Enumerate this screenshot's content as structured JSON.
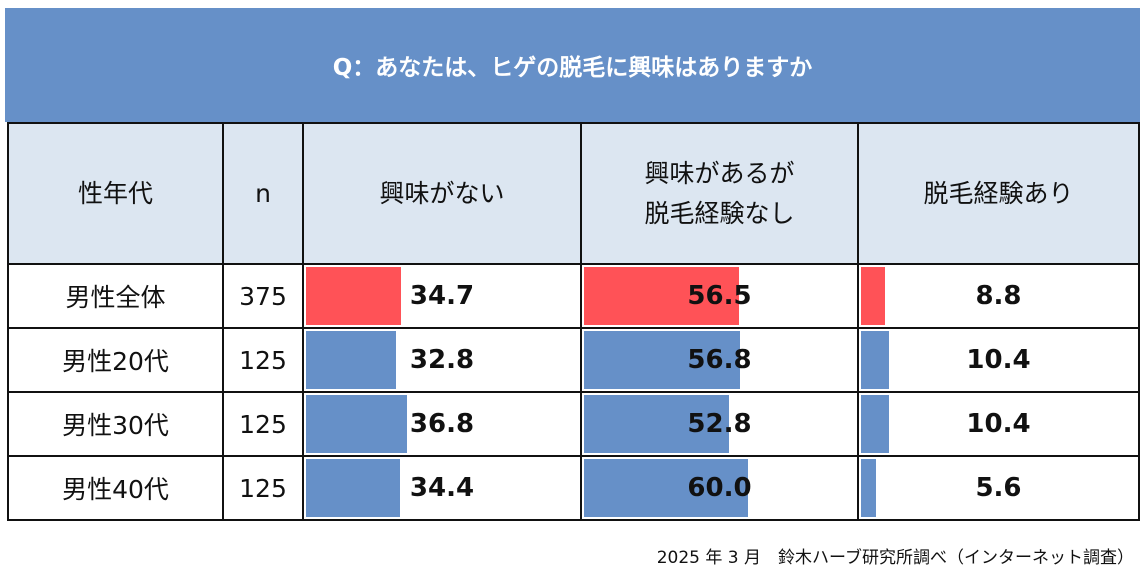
{
  "title": "Q：あなたは、ヒゲの脱毛に興味はありますか",
  "colors": {
    "band": "#6690c8",
    "header_cell": "#dce6f1",
    "highlight_bar": "#ff5257",
    "bar": "#6690c8"
  },
  "chart_data": {
    "type": "table",
    "columns": [
      "性年代",
      "n",
      "興味がない",
      "興味があるが\n脱毛経験なし",
      "脱毛経験あり"
    ],
    "rows": [
      {
        "label": "男性全体",
        "n": "375",
        "values": [
          "34.7",
          "56.5",
          "8.8"
        ],
        "highlight": true
      },
      {
        "label": "男性20代",
        "n": "125",
        "values": [
          "32.8",
          "56.8",
          "10.4"
        ],
        "highlight": false
      },
      {
        "label": "男性30代",
        "n": "125",
        "values": [
          "36.8",
          "52.8",
          "10.4"
        ],
        "highlight": false
      },
      {
        "label": "男性40代",
        "n": "125",
        "values": [
          "34.4",
          "60.0",
          "5.6"
        ],
        "highlight": false
      }
    ],
    "value_range": [
      0,
      100
    ]
  },
  "footer": "2025 年 3 月　鈴木ハーブ研究所調べ（インターネット調査）"
}
